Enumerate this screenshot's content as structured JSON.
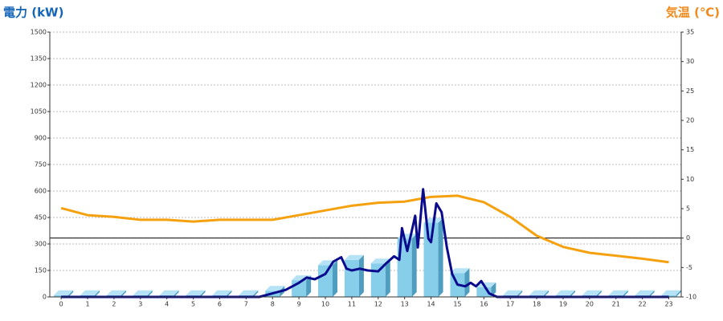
{
  "chart_data": {
    "type": "bar",
    "ylabel": "電力 (kW)",
    "y2label": "気温 (℃)",
    "x": [
      0,
      1,
      2,
      3,
      4,
      5,
      6,
      7,
      8,
      9,
      10,
      11,
      12,
      13,
      14,
      15,
      16,
      17,
      18,
      19,
      20,
      21,
      22,
      23
    ],
    "xlim": [
      -0.43,
      23.47
    ],
    "xticks": [
      0,
      1,
      2,
      3,
      4,
      5,
      6,
      7,
      8,
      9,
      10,
      11,
      12,
      13,
      14,
      15,
      16,
      17,
      18,
      19,
      20,
      21,
      22,
      23
    ],
    "ylim": [
      0,
      1500
    ],
    "yticks": [
      0,
      150,
      300,
      450,
      600,
      750,
      900,
      1050,
      1200,
      1350,
      1500
    ],
    "y2lim": [
      -10,
      35
    ],
    "y2ticks": [
      -10,
      -5,
      0,
      5,
      10,
      15,
      20,
      25,
      30,
      35
    ],
    "grid": true,
    "zero_line_y2": true,
    "series": [
      {
        "type": "bar",
        "color": "#87ceeb",
        "values": [
          10,
          10,
          10,
          10,
          10,
          10,
          10,
          10,
          35,
          95,
          180,
          210,
          190,
          330,
          420,
          135,
          55,
          10,
          10,
          10,
          10,
          10,
          10,
          10
        ]
      },
      {
        "type": "line",
        "axis": "y2",
        "color": "#f5a10f",
        "values": [
          5.1,
          3.9,
          3.6,
          3.1,
          3.1,
          2.8,
          3.1,
          3.1,
          3.1,
          3.9,
          4.7,
          5.5,
          6.0,
          6.2,
          7.0,
          7.2,
          6.1,
          3.6,
          0.4,
          -1.5,
          -2.5,
          -3.0,
          -3.5,
          -4.1
        ]
      },
      {
        "type": "line",
        "color": "#0a0a8c",
        "x": [
          0,
          7,
          7.5,
          8,
          8.5,
          9,
          9.3,
          9.6,
          10,
          10.3,
          10.6,
          10.8,
          11,
          11.3,
          11.6,
          12,
          12.3,
          12.6,
          12.8,
          12.9,
          13.1,
          13.4,
          13.5,
          13.7,
          13.9,
          14,
          14.2,
          14.4,
          14.6,
          14.8,
          15,
          15.3,
          15.5,
          15.7,
          15.9,
          16.2,
          16.5,
          23
        ],
        "values": [
          0,
          0,
          0,
          20,
          40,
          80,
          110,
          100,
          130,
          200,
          225,
          160,
          150,
          160,
          150,
          145,
          190,
          230,
          210,
          390,
          260,
          460,
          280,
          610,
          330,
          310,
          530,
          480,
          280,
          130,
          70,
          60,
          80,
          60,
          90,
          20,
          0,
          0
        ]
      }
    ]
  }
}
